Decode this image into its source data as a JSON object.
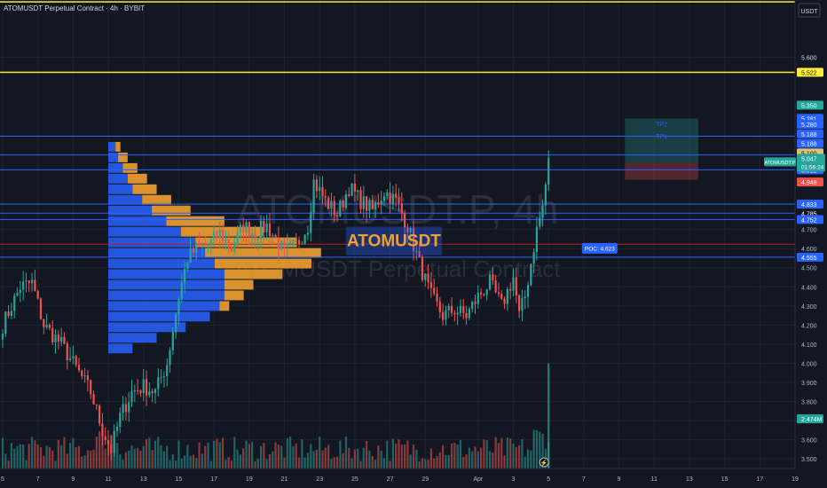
{
  "header": {
    "title": "ATOMUSDT Perpetual Contract · 4h · BYBIT",
    "currency": "USDT"
  },
  "watermark": {
    "symbol": "ATOMUSDT.P, 4h",
    "name": "ATOMUSDT Perpetual Contract"
  },
  "colors": {
    "background": "#131722",
    "up": "#26a69a",
    "down": "#ef5350",
    "level_yellow": "#ffeb3b",
    "level_blue": "#2962ff",
    "level_red": "#b71c1c",
    "profile_blue": "#2962ff",
    "profile_orange": "#f0a030",
    "grid": "#1e222d",
    "text": "#b2b5be"
  },
  "chart_data": {
    "type": "candlestick",
    "title": "ATOMUSDT Perpetual Contract · 4h · BYBIT",
    "ylim": [
      3.45,
      5.9
    ],
    "y_ticks": [
      3.5,
      3.6,
      3.7,
      3.8,
      3.9,
      4.0,
      4.1,
      4.2,
      4.3,
      4.4,
      4.5,
      4.6,
      4.7,
      5.6
    ],
    "x_ticks": [
      "5",
      "7",
      "9",
      "11",
      "13",
      "15",
      "17",
      "19",
      "21",
      "23",
      "25",
      "27",
      "29",
      "Apr",
      "3",
      "5",
      "7",
      "9",
      "11",
      "13",
      "15",
      "17",
      "19"
    ],
    "x_tick_positions": [
      0,
      12,
      24,
      36,
      48,
      60,
      72,
      84,
      96,
      108,
      120,
      132,
      144,
      162,
      174,
      186,
      198,
      210,
      222,
      234,
      246,
      258,
      270
    ],
    "x_range": [
      0,
      270
    ],
    "anchors": [
      [
        0,
        4.2
      ],
      [
        6,
        4.4
      ],
      [
        10,
        4.42
      ],
      [
        14,
        4.2
      ],
      [
        20,
        4.1
      ],
      [
        26,
        3.95
      ],
      [
        30,
        3.85
      ],
      [
        34,
        3.65
      ],
      [
        37,
        3.55
      ],
      [
        40,
        3.72
      ],
      [
        44,
        3.85
      ],
      [
        48,
        3.88
      ],
      [
        52,
        3.85
      ],
      [
        56,
        4.0
      ],
      [
        60,
        4.35
      ],
      [
        63,
        4.55
      ],
      [
        66,
        4.6
      ],
      [
        70,
        4.62
      ],
      [
        74,
        4.68
      ],
      [
        78,
        4.6
      ],
      [
        82,
        4.72
      ],
      [
        86,
        4.68
      ],
      [
        90,
        4.72
      ],
      [
        96,
        4.58
      ],
      [
        100,
        4.62
      ],
      [
        104,
        4.72
      ],
      [
        106,
        4.95
      ],
      [
        110,
        4.85
      ],
      [
        114,
        4.78
      ],
      [
        118,
        4.92
      ],
      [
        122,
        4.85
      ],
      [
        126,
        4.8
      ],
      [
        130,
        4.9
      ],
      [
        134,
        4.85
      ],
      [
        138,
        4.72
      ],
      [
        142,
        4.52
      ],
      [
        146,
        4.35
      ],
      [
        150,
        4.25
      ],
      [
        154,
        4.28
      ],
      [
        158,
        4.25
      ],
      [
        162,
        4.35
      ],
      [
        166,
        4.42
      ],
      [
        170,
        4.3
      ],
      [
        174,
        4.45
      ],
      [
        176,
        4.25
      ],
      [
        178,
        4.35
      ],
      [
        182,
        4.7
      ],
      [
        184,
        4.82
      ],
      [
        186,
        5.05
      ]
    ],
    "volume_spike": [
      186,
      4.0
    ],
    "levels": [
      {
        "price": 5.89,
        "color": "#ffeb3b"
      },
      {
        "price": 5.522,
        "color": "#ffeb3b"
      },
      {
        "price": 5.188,
        "color": "#2962ff"
      },
      {
        "price": 5.09,
        "color": "#2962ff"
      },
      {
        "price": 5.012,
        "color": "#2962ff"
      },
      {
        "price": 4.833,
        "color": "#2962ff"
      },
      {
        "price": 4.785,
        "color": "#2962ff"
      },
      {
        "price": 4.752,
        "color": "#2962ff"
      },
      {
        "price": 4.623,
        "color": "#b71c1c"
      },
      {
        "price": 4.555,
        "color": "#2962ff"
      }
    ],
    "price_labels": [
      {
        "price": 5.6,
        "text": "5.600",
        "bg": "",
        "fg": "#b2b5be"
      },
      {
        "price": 5.522,
        "text": "5.522",
        "bg": "#ffeb3b",
        "fg": "#131722"
      },
      {
        "price": 5.35,
        "text": "5.350",
        "bg": "#26a69a",
        "fg": "#ffffff"
      },
      {
        "price": 5.281,
        "text": "5.281",
        "bg": "#2962ff",
        "fg": "#ffffff"
      },
      {
        "price": 5.25,
        "text": "5.280",
        "bg": "#2962ff",
        "fg": "#ffffff"
      },
      {
        "price": 5.2,
        "text": "5.188",
        "bg": "#2962ff",
        "fg": "#ffffff"
      },
      {
        "price": 5.15,
        "text": "5.188",
        "bg": "#2962ff",
        "fg": "#ffffff"
      },
      {
        "price": 5.1,
        "text": "5.100",
        "bg": "#d9c27a",
        "fg": "#131722"
      },
      {
        "price": 5.05,
        "text": "5.090",
        "bg": "#2962ff",
        "fg": "#ffffff"
      },
      {
        "price": 5.012,
        "text": "5.012",
        "bg": "#2962ff",
        "fg": "#ffffff"
      },
      {
        "price": 4.948,
        "text": "4.948",
        "bg": "#ef5350",
        "fg": "#ffffff"
      },
      {
        "price": 4.833,
        "text": "4.833",
        "bg": "#2962ff",
        "fg": "#ffffff"
      },
      {
        "price": 4.785,
        "text": "4.785",
        "bg": "#131722",
        "fg": "#ffffff"
      },
      {
        "price": 4.752,
        "text": "4.752",
        "bg": "#2962ff",
        "fg": "#ffffff"
      },
      {
        "price": 4.555,
        "text": "4.555",
        "bg": "#2962ff",
        "fg": "#ffffff"
      }
    ],
    "current_price": {
      "price": 5.04,
      "text": "5.047",
      "countdown": "01:56:24",
      "bg": "#26a69a"
    },
    "symbol_tag": "ATOMUSDT.P",
    "volume_label": {
      "text": "2.474M",
      "bg": "#26a69a"
    },
    "poc": {
      "text": "POC: 4.623",
      "price": 4.62
    },
    "position": {
      "x0": 212,
      "x1": 237,
      "entry": 5.05,
      "tp2": 5.28,
      "tp1": 5.19,
      "stop": 4.96,
      "tp2_label": "TP2",
      "tp1_label": "TP1"
    },
    "profile_range": [
      4.05,
      5.16
    ],
    "profile_x0": 36,
    "profile_blue": [
      0.05,
      0.1,
      0.16,
      0.21,
      0.23,
      0.24,
      0.24,
      0.24,
      0.22,
      0.2,
      0.18,
      0.15,
      0.12,
      0.09,
      0.07,
      0.05,
      0.04,
      0.03,
      0.02,
      0.015
    ],
    "profile_orange": [
      0.0,
      0.0,
      0.0,
      0.0,
      0.02,
      0.04,
      0.06,
      0.12,
      0.2,
      0.24,
      0.21,
      0.17,
      0.12,
      0.08,
      0.06,
      0.05,
      0.04,
      0.03,
      0.02,
      0.01
    ],
    "watermark_box_label": "ATOMUSDT"
  }
}
